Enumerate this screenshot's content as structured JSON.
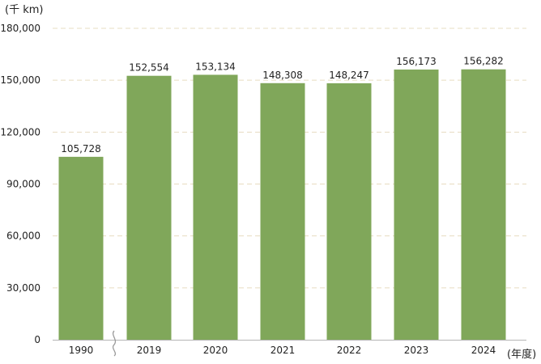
{
  "chart_data": {
    "type": "bar",
    "title": "",
    "y_unit_label": "(千 km)",
    "x_unit_label": "(年度)",
    "categories": [
      "1990",
      "2019",
      "2020",
      "2021",
      "2022",
      "2023",
      "2024"
    ],
    "values": [
      105728,
      152554,
      153134,
      148308,
      148247,
      156173,
      156282
    ],
    "value_labels": [
      "105,728",
      "152,554",
      "153,134",
      "148,308",
      "148,247",
      "156,173",
      "156,282"
    ],
    "y_ticks": [
      0,
      30000,
      60000,
      90000,
      120000,
      150000,
      180000
    ],
    "y_tick_labels": [
      "0",
      "30,000",
      "60,000",
      "90,000",
      "120,000",
      "150,000",
      "180,000"
    ],
    "ylim": [
      0,
      180000
    ],
    "grid": "horizontal-dashed",
    "axis_break": "between 1990 and 2019",
    "bar_color": "#80a75a",
    "grid_color": "#e7dcc0"
  }
}
